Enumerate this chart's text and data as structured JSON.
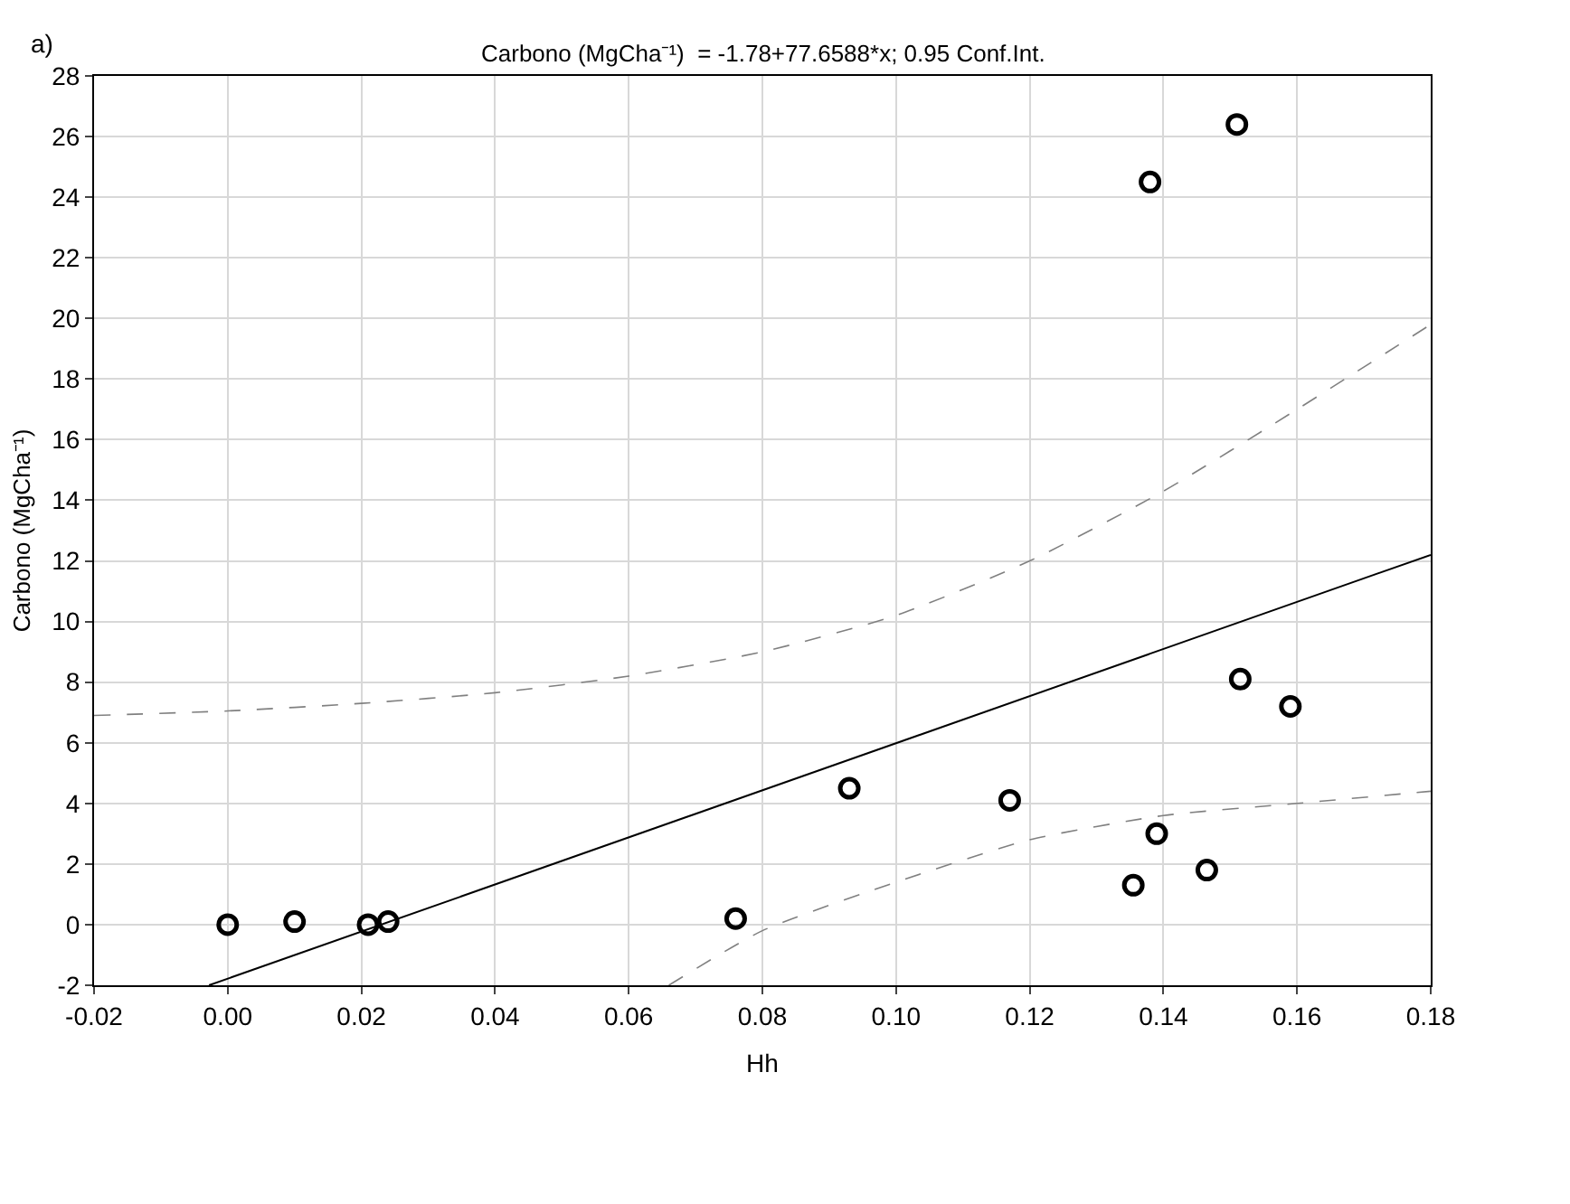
{
  "chart_data": {
    "type": "scatter",
    "title": "Carbono (MgCha⁻¹)  = -1.78+77.6588*x; 0.95 Conf.Int.",
    "xlabel": "Hh",
    "ylabel": "Carbono (MgCha⁻¹)",
    "annotations": [
      "a)"
    ],
    "xlim": [
      -0.02,
      0.18
    ],
    "xticks": [
      {
        "value": -0.02,
        "label": "-0.02"
      },
      {
        "value": 0,
        "label": "0.00"
      },
      {
        "value": 0.02,
        "label": "0.02"
      },
      {
        "value": 0.04,
        "label": "0.04"
      },
      {
        "value": 0.06,
        "label": "0.06"
      },
      {
        "value": 0.08,
        "label": "0.08"
      },
      {
        "value": 0.1,
        "label": "0.10"
      },
      {
        "value": 0.12,
        "label": "0.12"
      },
      {
        "value": 0.14,
        "label": "0.14"
      },
      {
        "value": 0.16,
        "label": "0.16"
      },
      {
        "value": 0.18,
        "label": "0.18"
      }
    ],
    "ylim": [
      -2,
      28
    ],
    "yticks": [
      -2,
      0,
      2,
      4,
      6,
      8,
      10,
      12,
      14,
      16,
      18,
      20,
      22,
      24,
      26,
      28
    ],
    "grid": true,
    "series": [
      {
        "marker": "circle",
        "color": "#000000",
        "x": [
          0.0,
          0.01,
          0.021,
          0.024,
          0.076,
          0.093,
          0.117,
          0.1355,
          0.139,
          0.138,
          0.151,
          0.1515,
          0.1465,
          0.159
        ],
        "values": [
          0.0,
          0.1,
          0.0,
          0.1,
          0.2,
          4.5,
          4.1,
          1.3,
          3.0,
          24.5,
          26.4,
          8.1,
          1.8,
          7.2
        ]
      },
      {
        "type": "line",
        "marker": "none",
        "line_style": "solid",
        "color": "#000000",
        "x": [
          -0.0028,
          0.18
        ],
        "values": [
          -2.0,
          12.2
        ]
      },
      {
        "type": "line",
        "marker": "none",
        "line_style": "dashed",
        "color": "#808080",
        "x": [
          -0.02,
          0.0,
          0.02,
          0.04,
          0.06,
          0.08,
          0.1,
          0.12,
          0.14,
          0.16,
          0.18
        ],
        "values": [
          6.9,
          7.05,
          7.3,
          7.65,
          8.2,
          9.0,
          10.2,
          12.0,
          14.3,
          17.0,
          19.8
        ]
      },
      {
        "type": "line",
        "marker": "none",
        "line_style": "dashed",
        "color": "#808080",
        "x": [
          0.066,
          0.08,
          0.1,
          0.12,
          0.14,
          0.16,
          0.18
        ],
        "values": [
          -2.0,
          -0.2,
          1.4,
          2.8,
          3.6,
          4.0,
          4.4
        ]
      }
    ]
  }
}
